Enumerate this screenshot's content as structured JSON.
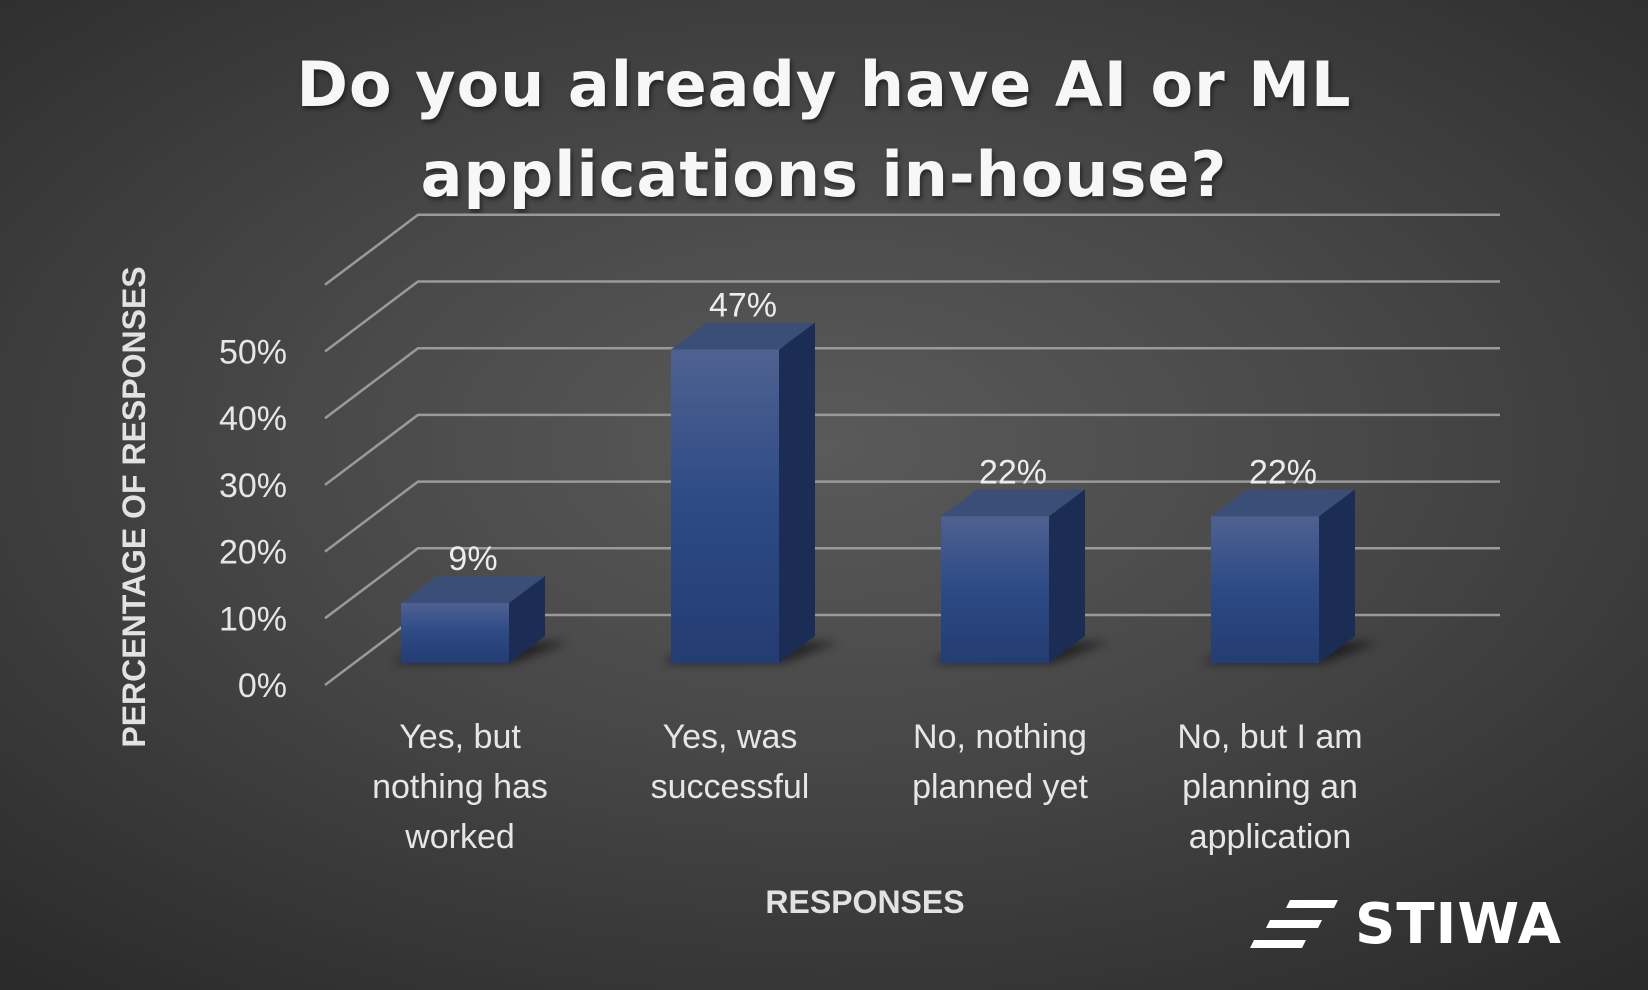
{
  "chart_data": {
    "type": "bar",
    "title": "Do you already have AI or ML applications in-house?",
    "xlabel": "RESPONSES",
    "ylabel": "PERCENTAGE OF RESPONSES",
    "categories": [
      "Yes, but nothing has worked",
      "Yes, was successful",
      "No, nothing planned yet",
      "No, but I am planning an application"
    ],
    "category_lines": [
      [
        "Yes, but",
        "nothing has",
        "worked"
      ],
      [
        "Yes, was",
        "successful"
      ],
      [
        "No, nothing",
        "planned yet"
      ],
      [
        "No, but I am",
        "planning an",
        "application"
      ]
    ],
    "values": [
      9,
      47,
      22,
      22
    ],
    "data_labels": [
      "9%",
      "47%",
      "22%",
      "22%"
    ],
    "yticks": [
      0,
      10,
      20,
      30,
      40,
      50
    ],
    "ytick_labels": [
      "0%",
      "10%",
      "20%",
      "30%",
      "40%",
      "50%"
    ],
    "ylim": [
      0,
      60
    ],
    "grid": true,
    "style": "3d-column",
    "bar_color": "#2c4680"
  },
  "logo": {
    "text": "STIWA"
  }
}
